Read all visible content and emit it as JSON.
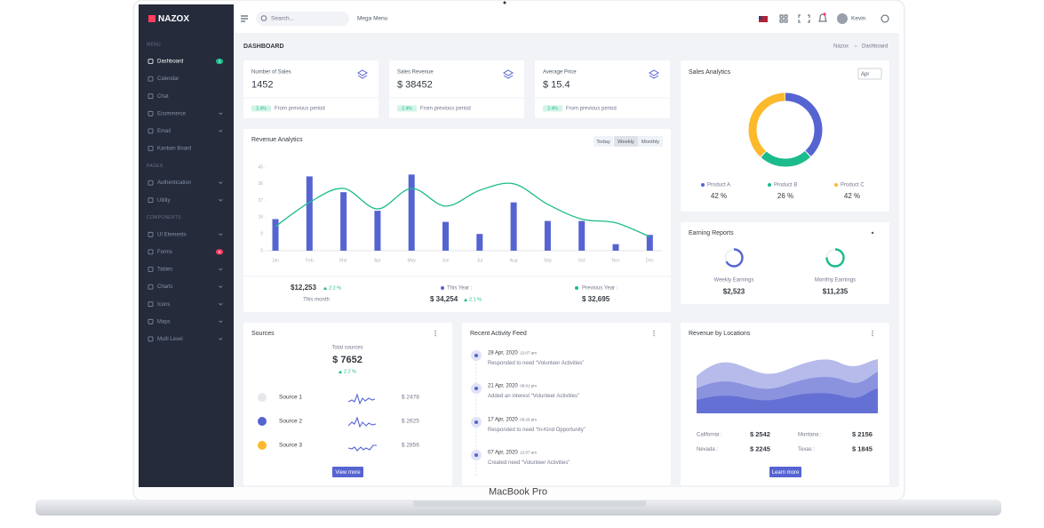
{
  "brand": "NAZOX",
  "sidebar": {
    "sections": [
      {
        "label": "MENU",
        "items": [
          {
            "label": "Dashboard",
            "badge": "3",
            "active": true
          },
          {
            "label": "Calendar"
          },
          {
            "label": "Chat"
          },
          {
            "label": "Ecommerce",
            "submenu": true
          },
          {
            "label": "Email",
            "submenu": true
          },
          {
            "label": "Kanban Board"
          }
        ]
      },
      {
        "label": "PAGES",
        "items": [
          {
            "label": "Authentication",
            "submenu": true
          },
          {
            "label": "Utility",
            "submenu": true
          }
        ]
      },
      {
        "label": "COMPONENTS",
        "items": [
          {
            "label": "UI Elements",
            "submenu": true
          },
          {
            "label": "Forms",
            "badge": "6"
          },
          {
            "label": "Tables",
            "submenu": true
          },
          {
            "label": "Charts",
            "submenu": true
          },
          {
            "label": "Icons",
            "submenu": true
          },
          {
            "label": "Maps",
            "submenu": true
          },
          {
            "label": "Multi Level",
            "submenu": true
          }
        ]
      }
    ]
  },
  "topbar": {
    "search_placeholder": "Search...",
    "mega_menu": "Mega Menu",
    "user": "Kevin"
  },
  "page_title": "DASHBOARD",
  "breadcrumb": [
    "Nazox",
    "Dashboard"
  ],
  "stats": [
    {
      "label": "Number of Sales",
      "value": "1452",
      "change": "2.4%",
      "note": "From previous period"
    },
    {
      "label": "Sales Revenue",
      "value": "$ 38452",
      "change": "2.4%",
      "note": "From previous period"
    },
    {
      "label": "Average Price",
      "value": "$ 15.4",
      "change": "2.4%",
      "note": "From previous period"
    }
  ],
  "revenue_analytics": {
    "title": "Revenue Analytics",
    "periods": [
      "Today",
      "Weekly",
      "Monthly"
    ],
    "chart_data": {
      "type": "bar",
      "categories": [
        "Jan",
        "Feb",
        "Mar",
        "Apr",
        "May",
        "Jun",
        "Jul",
        "Aug",
        "Sep",
        "Oct",
        "Nov",
        "Dec"
      ],
      "series": [
        {
          "type": "bar",
          "color": "#5664d2",
          "values": [
            17,
            40,
            31.5,
            21.5,
            41,
            15.5,
            9,
            26,
            16,
            16,
            3.5,
            8.5
          ]
        },
        {
          "type": "line",
          "color": "#1cbb8c",
          "values": [
            13,
            26,
            33.5,
            22.5,
            33.5,
            24,
            32.5,
            36,
            25,
            17,
            15,
            7.5
          ]
        }
      ],
      "ylim": [
        0,
        45
      ],
      "yticks": [
        0,
        9,
        18,
        27,
        36,
        45
      ]
    },
    "summary": [
      {
        "value": "$12,253",
        "change": "2.2 %",
        "label": "This month"
      },
      {
        "label": "This Year :",
        "value": "$ 34,254",
        "change": "2.1 %"
      },
      {
        "label": "Previous Year :",
        "value": "$ 32,695"
      }
    ]
  },
  "sales_analytics": {
    "title": "Sales Analytics",
    "select": "Apr",
    "chart_data": {
      "type": "donut",
      "categories": [
        "Product A",
        "Product B",
        "Product C"
      ],
      "values": [
        42,
        26,
        42
      ],
      "value_labels": [
        "42 %",
        "26 %",
        "42 %"
      ],
      "colors": [
        "#5664d2",
        "#1cbb8c",
        "#fcb92c"
      ]
    }
  },
  "earning_reports": {
    "title": "Earning Reports",
    "items": [
      {
        "label": "Weekly Earnings",
        "value": "$2,523"
      },
      {
        "label": "Monthly Earnings",
        "value": "$11,235"
      }
    ]
  },
  "sources": {
    "title": "Sources",
    "total_label": "Total sources",
    "total": "$ 7652",
    "change": "2.2 %",
    "rows": [
      {
        "name": "Source 1",
        "value": "$ 2478"
      },
      {
        "name": "Source 2",
        "value": "$ 2625"
      },
      {
        "name": "Source 3",
        "value": "$ 2856"
      }
    ],
    "button": "View more"
  },
  "activity": {
    "title": "Recent Activity Feed",
    "items": [
      {
        "date": "28 Apr, 2020",
        "time": "12:07 am",
        "text": "Responded to need “Volunteer Activities”"
      },
      {
        "date": "21 Apr, 2020",
        "time": "08:01 pm",
        "text": "Added an interest “Volunteer Activities”"
      },
      {
        "date": "17 Apr, 2020",
        "time": "09:29 pm",
        "text": "Responded to need “In-Kind Opportunity”"
      },
      {
        "date": "07 Apr, 2020",
        "time": "12:07 am",
        "text": "Created need “Volunteer Activities”"
      }
    ]
  },
  "locations": {
    "title": "Revenue by Locations",
    "rows": [
      [
        {
          "name": "California :",
          "value": "$ 2542"
        },
        {
          "name": "Montana :",
          "value": "$ 2156"
        }
      ],
      [
        {
          "name": "Nevada :",
          "value": "$ 2245"
        },
        {
          "name": "Texas :",
          "value": "$ 1845"
        }
      ]
    ],
    "button": "Learn more"
  },
  "device": "MacBook Pro"
}
